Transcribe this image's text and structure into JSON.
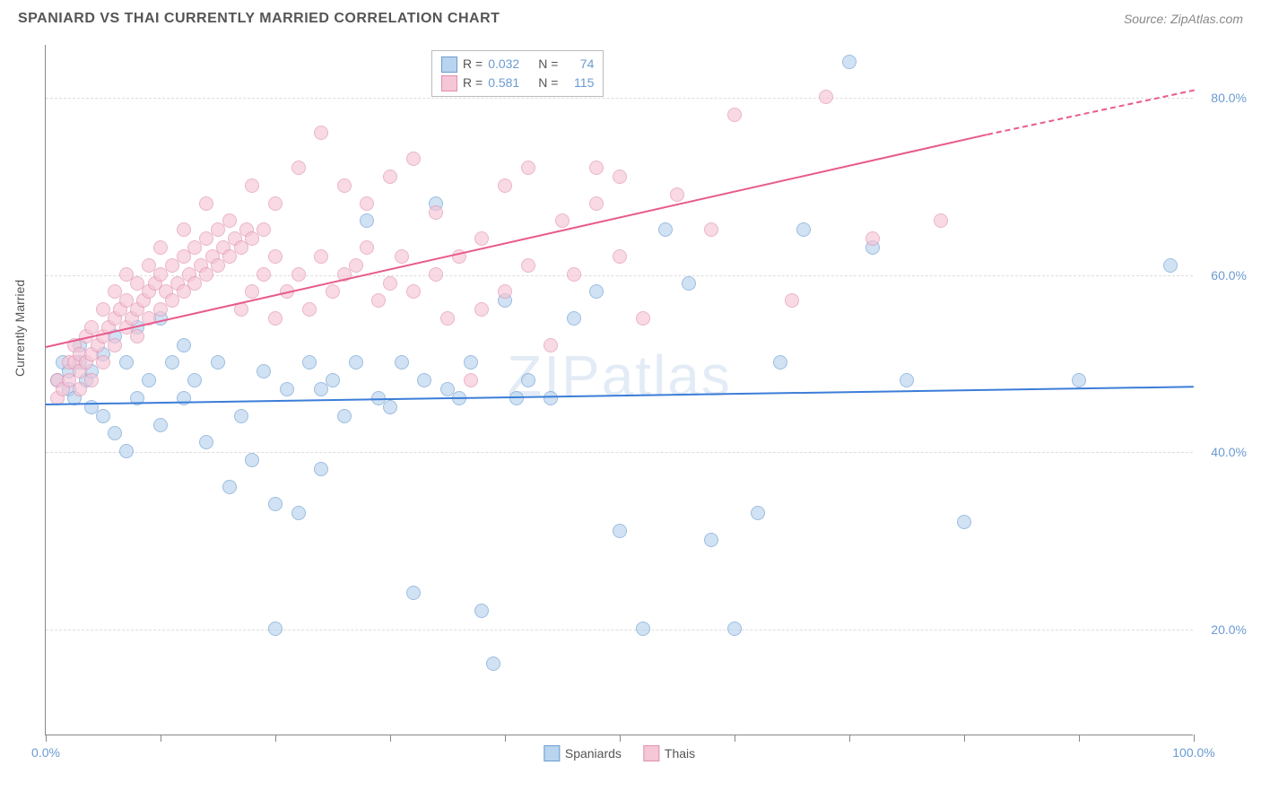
{
  "title": "SPANIARD VS THAI CURRENTLY MARRIED CORRELATION CHART",
  "source": "Source: ZipAtlas.com",
  "ylabel": "Currently Married",
  "watermark": "ZIPatlas",
  "chart": {
    "type": "scatter",
    "xlim": [
      0,
      100
    ],
    "ylim": [
      8,
      86
    ],
    "x_ticks": [
      0,
      10,
      20,
      30,
      40,
      50,
      60,
      70,
      80,
      90,
      100
    ],
    "x_tick_labels": {
      "0": "0.0%",
      "100": "100.0%"
    },
    "y_gridlines": [
      20,
      40,
      60,
      80
    ],
    "y_tick_labels": {
      "20": "20.0%",
      "40": "40.0%",
      "60": "60.0%",
      "80": "80.0%"
    },
    "grid_color": "#dddddd",
    "background_color": "#ffffff",
    "axis_color": "#888888",
    "tick_label_color": "#6b9bd1",
    "series": [
      {
        "name": "Spaniards",
        "color_fill": "#b8d4ee",
        "color_stroke": "#6b9bd1",
        "trend_color": "#3b7dd8",
        "R": "0.032",
        "N": "74",
        "trend": {
          "x1": 0,
          "y1": 45.5,
          "x2": 100,
          "y2": 47.5
        },
        "points": [
          [
            1,
            48
          ],
          [
            1.5,
            50
          ],
          [
            2,
            47
          ],
          [
            2,
            49
          ],
          [
            2.5,
            46
          ],
          [
            3,
            50
          ],
          [
            3,
            52
          ],
          [
            3.5,
            48
          ],
          [
            4,
            49
          ],
          [
            4,
            45
          ],
          [
            5,
            44
          ],
          [
            5,
            51
          ],
          [
            6,
            42
          ],
          [
            6,
            53
          ],
          [
            7,
            50
          ],
          [
            7,
            40
          ],
          [
            8,
            54
          ],
          [
            8,
            46
          ],
          [
            9,
            48
          ],
          [
            10,
            55
          ],
          [
            10,
            43
          ],
          [
            11,
            50
          ],
          [
            12,
            46
          ],
          [
            12,
            52
          ],
          [
            13,
            48
          ],
          [
            14,
            41
          ],
          [
            15,
            50
          ],
          [
            16,
            36
          ],
          [
            17,
            44
          ],
          [
            18,
            39
          ],
          [
            19,
            49
          ],
          [
            20,
            20
          ],
          [
            20,
            34
          ],
          [
            21,
            47
          ],
          [
            22,
            33
          ],
          [
            23,
            50
          ],
          [
            24,
            47
          ],
          [
            24,
            38
          ],
          [
            25,
            48
          ],
          [
            26,
            44
          ],
          [
            27,
            50
          ],
          [
            28,
            66
          ],
          [
            29,
            46
          ],
          [
            30,
            45
          ],
          [
            31,
            50
          ],
          [
            32,
            24
          ],
          [
            33,
            48
          ],
          [
            34,
            68
          ],
          [
            35,
            47
          ],
          [
            36,
            46
          ],
          [
            37,
            50
          ],
          [
            38,
            22
          ],
          [
            39,
            16
          ],
          [
            40,
            57
          ],
          [
            41,
            46
          ],
          [
            42,
            48
          ],
          [
            44,
            46
          ],
          [
            46,
            55
          ],
          [
            48,
            58
          ],
          [
            50,
            31
          ],
          [
            52,
            20
          ],
          [
            54,
            65
          ],
          [
            56,
            59
          ],
          [
            58,
            30
          ],
          [
            60,
            20
          ],
          [
            62,
            33
          ],
          [
            64,
            50
          ],
          [
            66,
            65
          ],
          [
            70,
            84
          ],
          [
            72,
            63
          ],
          [
            75,
            48
          ],
          [
            80,
            32
          ],
          [
            90,
            48
          ],
          [
            98,
            61
          ]
        ]
      },
      {
        "name": "Thais",
        "color_fill": "#f5c6d6",
        "color_stroke": "#e08fb0",
        "trend_color": "#e85a8a",
        "R": "0.581",
        "N": "115",
        "trend": {
          "x1": 0,
          "y1": 52,
          "x2": 82,
          "y2": 76
        },
        "trend_dash": {
          "x1": 82,
          "y1": 76,
          "x2": 100,
          "y2": 81
        },
        "points": [
          [
            1,
            46
          ],
          [
            1,
            48
          ],
          [
            1.5,
            47
          ],
          [
            2,
            48
          ],
          [
            2,
            50
          ],
          [
            2.5,
            50
          ],
          [
            2.5,
            52
          ],
          [
            3,
            47
          ],
          [
            3,
            49
          ],
          [
            3,
            51
          ],
          [
            3.5,
            50
          ],
          [
            3.5,
            53
          ],
          [
            4,
            48
          ],
          [
            4,
            51
          ],
          [
            4,
            54
          ],
          [
            4.5,
            52
          ],
          [
            5,
            50
          ],
          [
            5,
            53
          ],
          [
            5,
            56
          ],
          [
            5.5,
            54
          ],
          [
            6,
            52
          ],
          [
            6,
            55
          ],
          [
            6,
            58
          ],
          [
            6.5,
            56
          ],
          [
            7,
            54
          ],
          [
            7,
            57
          ],
          [
            7,
            60
          ],
          [
            7.5,
            55
          ],
          [
            8,
            53
          ],
          [
            8,
            56
          ],
          [
            8,
            59
          ],
          [
            8.5,
            57
          ],
          [
            9,
            55
          ],
          [
            9,
            58
          ],
          [
            9,
            61
          ],
          [
            9.5,
            59
          ],
          [
            10,
            56
          ],
          [
            10,
            60
          ],
          [
            10,
            63
          ],
          [
            10.5,
            58
          ],
          [
            11,
            57
          ],
          [
            11,
            61
          ],
          [
            11.5,
            59
          ],
          [
            12,
            58
          ],
          [
            12,
            62
          ],
          [
            12,
            65
          ],
          [
            12.5,
            60
          ],
          [
            13,
            59
          ],
          [
            13,
            63
          ],
          [
            13.5,
            61
          ],
          [
            14,
            60
          ],
          [
            14,
            64
          ],
          [
            14,
            68
          ],
          [
            14.5,
            62
          ],
          [
            15,
            61
          ],
          [
            15,
            65
          ],
          [
            15.5,
            63
          ],
          [
            16,
            62
          ],
          [
            16,
            66
          ],
          [
            16.5,
            64
          ],
          [
            17,
            56
          ],
          [
            17,
            63
          ],
          [
            17.5,
            65
          ],
          [
            18,
            58
          ],
          [
            18,
            64
          ],
          [
            18,
            70
          ],
          [
            19,
            60
          ],
          [
            19,
            65
          ],
          [
            20,
            55
          ],
          [
            20,
            62
          ],
          [
            20,
            68
          ],
          [
            21,
            58
          ],
          [
            22,
            60
          ],
          [
            22,
            72
          ],
          [
            23,
            56
          ],
          [
            24,
            62
          ],
          [
            24,
            76
          ],
          [
            25,
            58
          ],
          [
            26,
            60
          ],
          [
            26,
            70
          ],
          [
            27,
            61
          ],
          [
            28,
            63
          ],
          [
            28,
            68
          ],
          [
            29,
            57
          ],
          [
            30,
            59
          ],
          [
            30,
            71
          ],
          [
            31,
            62
          ],
          [
            32,
            58
          ],
          [
            32,
            73
          ],
          [
            34,
            60
          ],
          [
            34,
            67
          ],
          [
            35,
            55
          ],
          [
            36,
            62
          ],
          [
            37,
            48
          ],
          [
            38,
            56
          ],
          [
            38,
            64
          ],
          [
            40,
            58
          ],
          [
            40,
            70
          ],
          [
            42,
            61
          ],
          [
            42,
            72
          ],
          [
            44,
            52
          ],
          [
            45,
            66
          ],
          [
            46,
            60
          ],
          [
            48,
            68
          ],
          [
            48,
            72
          ],
          [
            50,
            62
          ],
          [
            50,
            71
          ],
          [
            52,
            55
          ],
          [
            55,
            69
          ],
          [
            58,
            65
          ],
          [
            60,
            78
          ],
          [
            65,
            57
          ],
          [
            68,
            80
          ],
          [
            72,
            64
          ],
          [
            78,
            66
          ]
        ]
      }
    ]
  },
  "stats_legend": {
    "rows": [
      {
        "swatch_fill": "#b8d4ee",
        "swatch_stroke": "#6b9bd1",
        "R_label": "R =",
        "R": "0.032",
        "N_label": "N =",
        "N": "74"
      },
      {
        "swatch_fill": "#f5c6d6",
        "swatch_stroke": "#e08fb0",
        "R_label": "R =",
        "R": "0.581",
        "N_label": "N =",
        "N": "115"
      }
    ]
  },
  "bottom_legend": [
    {
      "swatch_fill": "#b8d4ee",
      "swatch_stroke": "#6b9bd1",
      "label": "Spaniards"
    },
    {
      "swatch_fill": "#f5c6d6",
      "swatch_stroke": "#e08fb0",
      "label": "Thais"
    }
  ]
}
